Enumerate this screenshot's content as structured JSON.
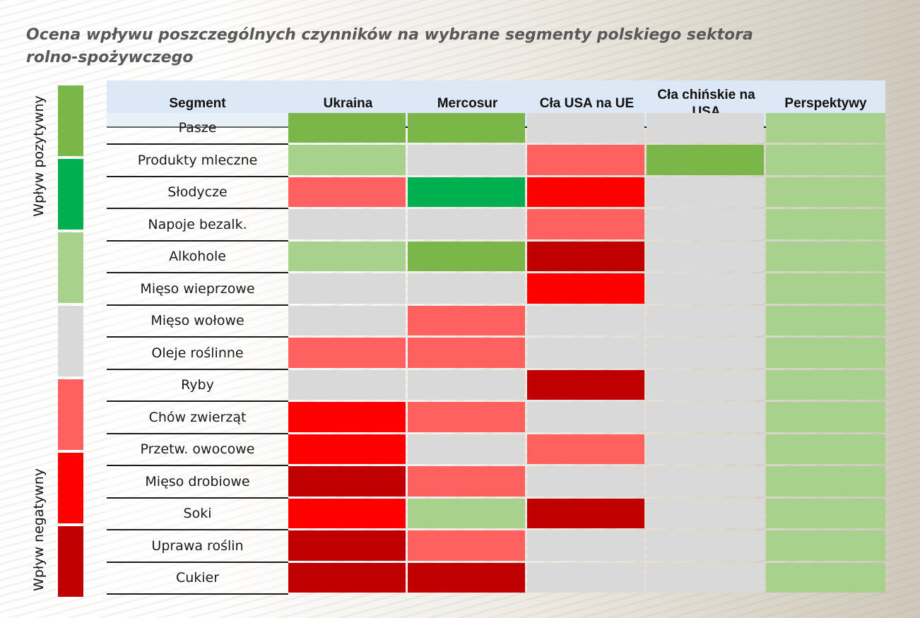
{
  "title": "Ocena wpływu poszczególnych czynników na wybrane segmenty polskiego sektora rolno-spożywczego",
  "legend": {
    "top_label": "Wpływ pozytywny",
    "bottom_label": "Wpływ negatywny",
    "scale": [
      3,
      2,
      1,
      0,
      -1,
      -2,
      -3
    ]
  },
  "colors": {
    "3": "#7ab648",
    "2": "#00b050",
    "1": "#a9d18e",
    "0": "#d9d9d9",
    "-1": "#ff6161",
    "-2": "#ff0000",
    "-3": "#c00000"
  },
  "header": {
    "segment": "Segment",
    "columns": [
      "Ukraina",
      "Mercosur",
      "Cła USA na UE",
      "Cła chińskie na USA",
      "Perspektywy"
    ]
  },
  "chart_data": {
    "type": "heatmap",
    "columns": [
      "Ukraina",
      "Mercosur",
      "Cła USA na UE",
      "Cła chińskie na USA",
      "Perspektywy"
    ],
    "rows": [
      "Pasze",
      "Produkty mleczne",
      "Słodycze",
      "Napoje bezalk.",
      "Alkohole",
      "Mięso wieprzowe",
      "Mięso wołowe",
      "Oleje roślinne",
      "Ryby",
      "Chów zwierząt",
      "Przetw. owocowe",
      "Mięso drobiowe",
      "Soki",
      "Uprawa roślin",
      "Cukier"
    ],
    "values": [
      [
        3,
        3,
        0,
        0,
        1
      ],
      [
        1,
        0,
        -1,
        3,
        1
      ],
      [
        -1,
        2,
        -2,
        0,
        1
      ],
      [
        0,
        0,
        -1,
        0,
        1
      ],
      [
        1,
        3,
        -3,
        0,
        1
      ],
      [
        0,
        0,
        -2,
        0,
        1
      ],
      [
        0,
        -1,
        0,
        0,
        1
      ],
      [
        -1,
        -1,
        0,
        0,
        1
      ],
      [
        0,
        0,
        -3,
        0,
        1
      ],
      [
        -2,
        -1,
        0,
        0,
        1
      ],
      [
        -2,
        0,
        -1,
        0,
        1
      ],
      [
        -3,
        -1,
        0,
        0,
        1
      ],
      [
        -2,
        1,
        -3,
        0,
        1
      ],
      [
        -3,
        -1,
        0,
        0,
        1
      ],
      [
        -3,
        -3,
        0,
        0,
        1
      ]
    ]
  }
}
